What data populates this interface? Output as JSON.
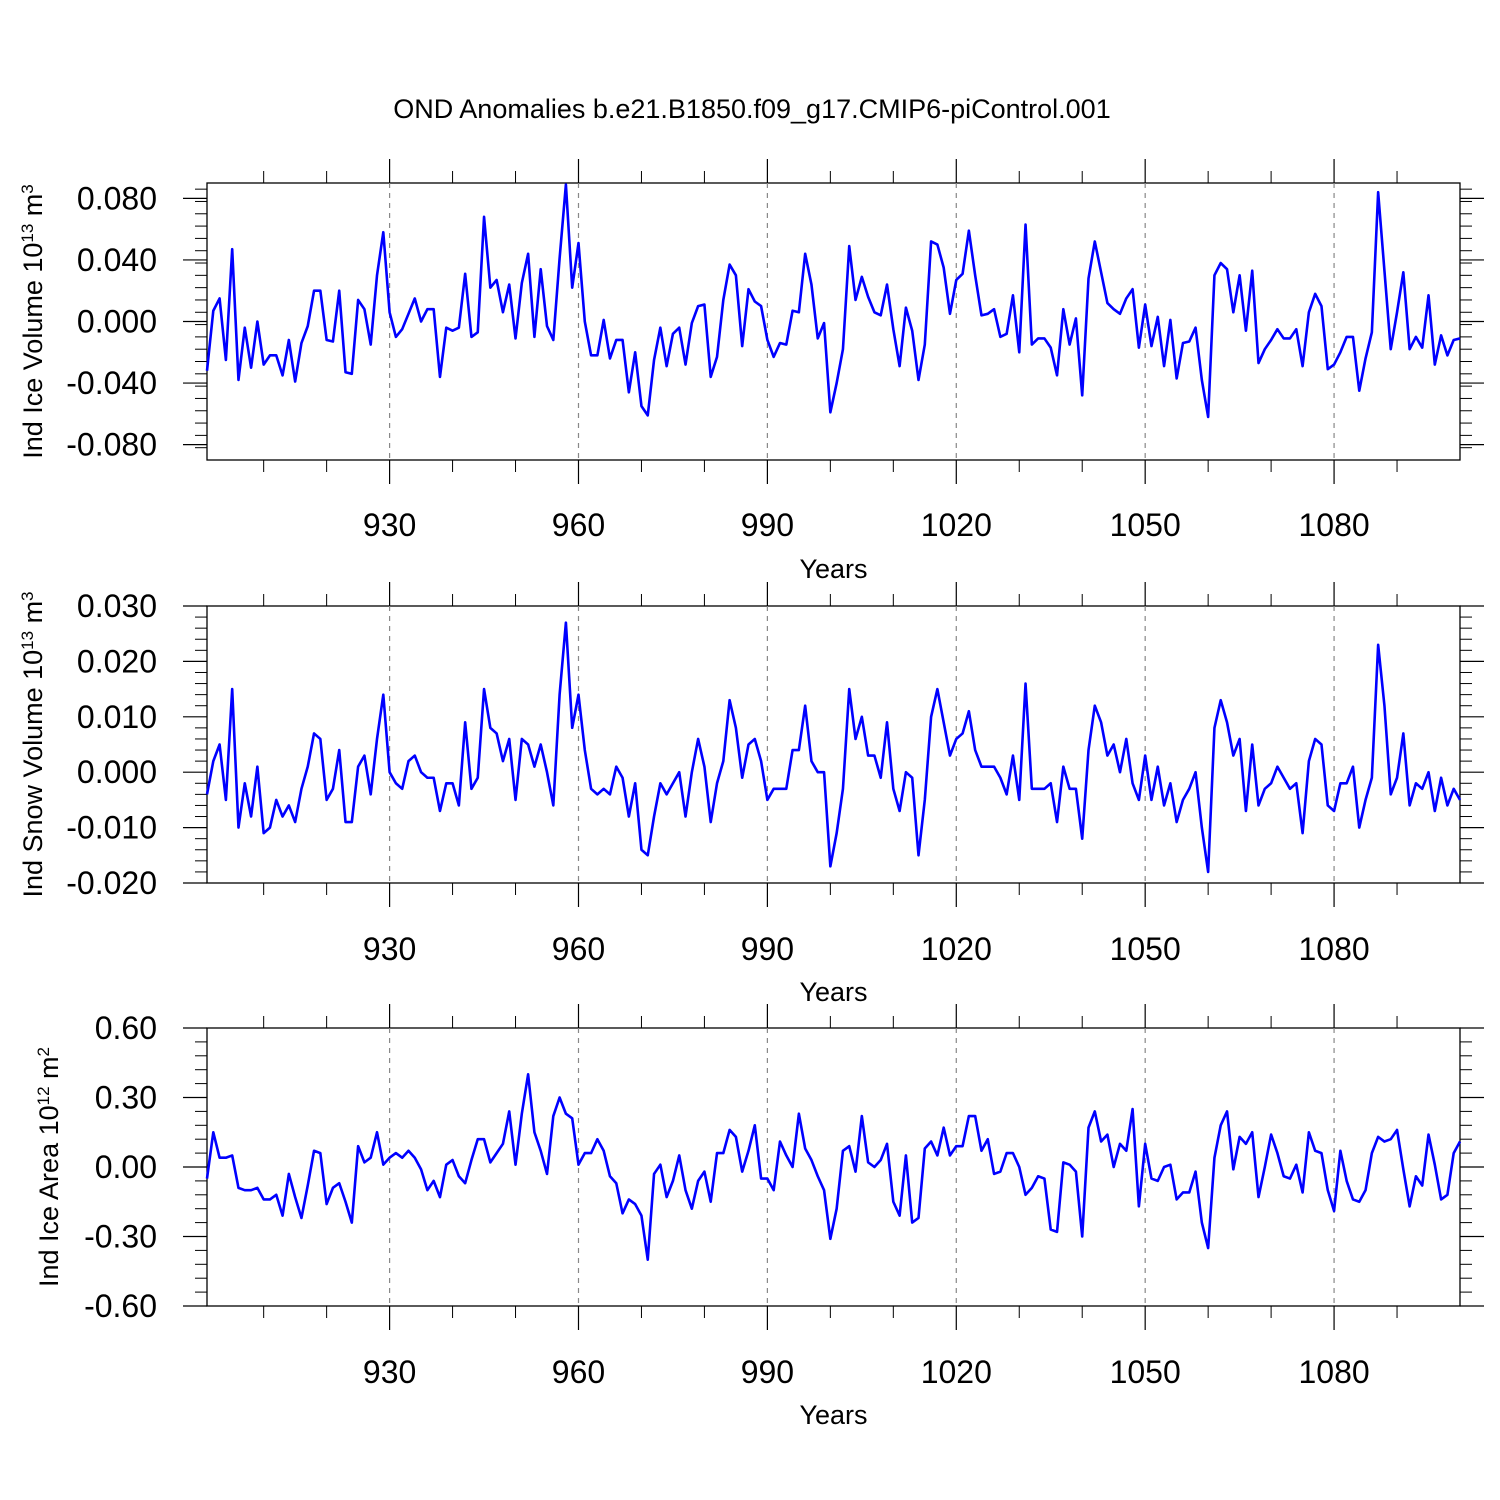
{
  "title": "OND Anomalies b.e21.B1850.f09_g17.CMIP6-piControl.001",
  "line_color": "#0000ff",
  "chart_data": [
    {
      "type": "line",
      "name": "ice-volume",
      "ylabel_main": "Ind Ice Volume 10",
      "ylabel_sup": "13",
      "ylabel_unit": " m",
      "ylabel_unit_sup": "3",
      "xlabel": "Years",
      "xlim": [
        901,
        1100
      ],
      "ylim": [
        -0.09,
        0.09
      ],
      "x_start": 901,
      "x_step": 1,
      "yticks": [
        "0.080",
        "0.040",
        "0.000",
        "-0.040",
        "-0.080"
      ],
      "xticks": [
        "930",
        "960",
        "990",
        "1020",
        "1050",
        "1080"
      ],
      "values": [
        -0.032,
        0.007,
        0.015,
        -0.025,
        0.047,
        -0.038,
        -0.004,
        -0.03,
        0.0,
        -0.028,
        -0.022,
        -0.022,
        -0.035,
        -0.012,
        -0.039,
        -0.014,
        -0.003,
        0.02,
        0.02,
        -0.012,
        -0.013,
        0.02,
        -0.033,
        -0.034,
        0.014,
        0.008,
        -0.015,
        0.03,
        0.058,
        0.006,
        -0.01,
        -0.005,
        0.005,
        0.015,
        0.0,
        0.008,
        0.008,
        -0.036,
        -0.004,
        -0.006,
        -0.004,
        0.031,
        -0.01,
        -0.007,
        0.068,
        0.022,
        0.027,
        0.006,
        0.024,
        -0.011,
        0.025,
        0.044,
        -0.01,
        0.034,
        -0.003,
        -0.012,
        0.041,
        0.089,
        0.022,
        0.051,
        0.0,
        -0.022,
        -0.022,
        0.001,
        -0.024,
        -0.012,
        -0.012,
        -0.046,
        -0.02,
        -0.055,
        -0.061,
        -0.025,
        -0.004,
        -0.029,
        -0.008,
        -0.004,
        -0.028,
        -0.001,
        0.01,
        0.011,
        -0.036,
        -0.023,
        0.014,
        0.037,
        0.03,
        -0.016,
        0.021,
        0.013,
        0.01,
        -0.012,
        -0.023,
        -0.014,
        -0.015,
        0.007,
        0.006,
        0.044,
        0.024,
        -0.011,
        -0.001,
        -0.059,
        -0.04,
        -0.018,
        0.049,
        0.014,
        0.029,
        0.016,
        0.006,
        0.004,
        0.024,
        -0.005,
        -0.029,
        0.009,
        -0.006,
        -0.038,
        -0.015,
        0.052,
        0.05,
        0.035,
        0.005,
        0.027,
        0.031,
        0.059,
        0.03,
        0.004,
        0.005,
        0.008,
        -0.01,
        -0.008,
        0.017,
        -0.02,
        0.063,
        -0.015,
        -0.011,
        -0.011,
        -0.017,
        -0.035,
        0.008,
        -0.015,
        0.002,
        -0.048,
        0.028,
        0.052,
        0.032,
        0.012,
        0.008,
        0.005,
        0.015,
        0.021,
        -0.017,
        0.011,
        -0.016,
        0.003,
        -0.029,
        0.001,
        -0.037,
        -0.014,
        -0.013,
        -0.004,
        -0.038,
        -0.062,
        0.03,
        0.038,
        0.034,
        0.006,
        0.03,
        -0.006,
        0.033,
        -0.027,
        -0.018,
        -0.012,
        -0.005,
        -0.011,
        -0.011,
        -0.005,
        -0.029,
        0.006,
        0.018,
        0.01,
        -0.031,
        -0.028,
        -0.02,
        -0.01,
        -0.01,
        -0.045,
        -0.024,
        -0.007,
        0.084,
        0.033,
        -0.018,
        0.006,
        0.032,
        -0.018,
        -0.01,
        -0.017,
        0.017,
        -0.028,
        -0.009,
        -0.022,
        -0.012,
        -0.011
      ]
    },
    {
      "type": "line",
      "name": "snow-volume",
      "ylabel_main": "Ind Snow Volume 10",
      "ylabel_sup": "13",
      "ylabel_unit": " m",
      "ylabel_unit_sup": "3",
      "xlabel": "Years",
      "xlim": [
        901,
        1100
      ],
      "ylim": [
        -0.02,
        0.03
      ],
      "x_start": 901,
      "x_step": 1,
      "yticks": [
        "0.030",
        "0.020",
        "0.010",
        "0.000",
        "-0.010",
        "-0.020"
      ],
      "xticks": [
        "930",
        "960",
        "990",
        "1020",
        "1050",
        "1080"
      ],
      "values": [
        -0.004,
        0.002,
        0.005,
        -0.005,
        0.015,
        -0.01,
        -0.002,
        -0.008,
        0.001,
        -0.011,
        -0.01,
        -0.005,
        -0.008,
        -0.006,
        -0.009,
        -0.003,
        0.001,
        0.007,
        0.006,
        -0.005,
        -0.003,
        0.004,
        -0.009,
        -0.009,
        0.001,
        0.003,
        -0.004,
        0.006,
        0.014,
        0.0,
        -0.002,
        -0.003,
        0.002,
        0.003,
        0.0,
        -0.001,
        -0.001,
        -0.007,
        -0.002,
        -0.002,
        -0.006,
        0.009,
        -0.003,
        -0.001,
        0.015,
        0.008,
        0.007,
        0.002,
        0.006,
        -0.005,
        0.006,
        0.005,
        0.001,
        0.005,
        0.0,
        -0.006,
        0.014,
        0.027,
        0.008,
        0.014,
        0.004,
        -0.003,
        -0.004,
        -0.003,
        -0.004,
        0.001,
        -0.001,
        -0.008,
        -0.002,
        -0.014,
        -0.015,
        -0.008,
        -0.002,
        -0.004,
        -0.002,
        0.0,
        -0.008,
        0.0,
        0.006,
        0.001,
        -0.009,
        -0.002,
        0.002,
        0.013,
        0.008,
        -0.001,
        0.005,
        0.006,
        0.002,
        -0.005,
        -0.003,
        -0.003,
        -0.003,
        0.004,
        0.004,
        0.012,
        0.002,
        0.0,
        0.0,
        -0.017,
        -0.011,
        -0.003,
        0.015,
        0.006,
        0.01,
        0.003,
        0.003,
        -0.001,
        0.009,
        -0.003,
        -0.007,
        0.0,
        -0.001,
        -0.015,
        -0.005,
        0.01,
        0.015,
        0.009,
        0.003,
        0.006,
        0.007,
        0.011,
        0.004,
        0.001,
        0.001,
        0.001,
        -0.001,
        -0.004,
        0.003,
        -0.005,
        0.016,
        -0.003,
        -0.003,
        -0.003,
        -0.002,
        -0.009,
        0.001,
        -0.003,
        -0.003,
        -0.012,
        0.004,
        0.012,
        0.009,
        0.003,
        0.005,
        0.0,
        0.006,
        -0.002,
        -0.005,
        0.003,
        -0.005,
        0.001,
        -0.006,
        -0.002,
        -0.009,
        -0.005,
        -0.003,
        0.0,
        -0.01,
        -0.018,
        0.008,
        0.013,
        0.009,
        0.003,
        0.006,
        -0.007,
        0.005,
        -0.006,
        -0.003,
        -0.002,
        0.001,
        -0.001,
        -0.003,
        -0.002,
        -0.011,
        0.002,
        0.006,
        0.005,
        -0.006,
        -0.007,
        -0.002,
        -0.002,
        0.001,
        -0.01,
        -0.005,
        -0.001,
        0.023,
        0.012,
        -0.004,
        -0.001,
        0.007,
        -0.006,
        -0.002,
        -0.003,
        0.0,
        -0.007,
        -0.001,
        -0.006,
        -0.003,
        -0.005
      ]
    },
    {
      "type": "line",
      "name": "ice-area",
      "ylabel_main": "Ind Ice Area 10",
      "ylabel_sup": "12",
      "ylabel_unit": " m",
      "ylabel_unit_sup": "2",
      "xlabel": "Years",
      "xlim": [
        901,
        1100
      ],
      "ylim": [
        -0.6,
        0.6
      ],
      "x_start": 901,
      "x_step": 1,
      "yticks": [
        "0.60",
        "0.30",
        "0.00",
        "-0.30",
        "-0.60"
      ],
      "xticks": [
        "930",
        "960",
        "990",
        "1020",
        "1050",
        "1080"
      ],
      "values": [
        -0.05,
        0.15,
        0.04,
        0.04,
        0.05,
        -0.09,
        -0.1,
        -0.1,
        -0.09,
        -0.14,
        -0.14,
        -0.12,
        -0.21,
        -0.03,
        -0.13,
        -0.22,
        -0.08,
        0.07,
        0.06,
        -0.16,
        -0.09,
        -0.07,
        -0.15,
        -0.24,
        0.09,
        0.02,
        0.04,
        0.15,
        0.01,
        0.04,
        0.06,
        0.04,
        0.07,
        0.04,
        -0.01,
        -0.1,
        -0.06,
        -0.13,
        0.01,
        0.03,
        -0.04,
        -0.07,
        0.03,
        0.12,
        0.12,
        0.02,
        0.06,
        0.1,
        0.24,
        0.01,
        0.23,
        0.4,
        0.15,
        0.07,
        -0.03,
        0.22,
        0.3,
        0.23,
        0.21,
        0.01,
        0.06,
        0.06,
        0.12,
        0.07,
        -0.04,
        -0.07,
        -0.2,
        -0.14,
        -0.16,
        -0.21,
        -0.4,
        -0.03,
        0.01,
        -0.13,
        -0.06,
        0.05,
        -0.1,
        -0.18,
        -0.06,
        -0.02,
        -0.15,
        0.06,
        0.06,
        0.16,
        0.13,
        -0.02,
        0.07,
        0.18,
        -0.05,
        -0.05,
        -0.1,
        0.11,
        0.05,
        0.0,
        0.23,
        0.08,
        0.03,
        -0.04,
        -0.1,
        -0.31,
        -0.18,
        0.07,
        0.09,
        -0.02,
        0.22,
        0.02,
        0.0,
        0.03,
        0.1,
        -0.15,
        -0.21,
        0.05,
        -0.24,
        -0.22,
        0.08,
        0.11,
        0.05,
        0.17,
        0.05,
        0.09,
        0.09,
        0.22,
        0.22,
        0.07,
        0.12,
        -0.03,
        -0.02,
        0.06,
        0.06,
        0.0,
        -0.12,
        -0.09,
        -0.04,
        -0.05,
        -0.27,
        -0.28,
        0.02,
        0.01,
        -0.02,
        -0.3,
        0.17,
        0.24,
        0.11,
        0.14,
        0.0,
        0.1,
        0.07,
        0.25,
        -0.17,
        0.1,
        -0.05,
        -0.06,
        0.0,
        0.01,
        -0.14,
        -0.11,
        -0.11,
        -0.02,
        -0.24,
        -0.35,
        0.04,
        0.18,
        0.24,
        -0.01,
        0.13,
        0.1,
        0.15,
        -0.13,
        0.0,
        0.14,
        0.06,
        -0.04,
        -0.05,
        0.01,
        -0.11,
        0.15,
        0.07,
        0.06,
        -0.1,
        -0.19,
        0.07,
        -0.06,
        -0.14,
        -0.15,
        -0.1,
        0.06,
        0.13,
        0.11,
        0.12,
        0.16,
        -0.01,
        -0.17,
        -0.04,
        -0.08,
        0.14,
        0.01,
        -0.14,
        -0.12,
        0.06,
        0.11
      ]
    }
  ]
}
